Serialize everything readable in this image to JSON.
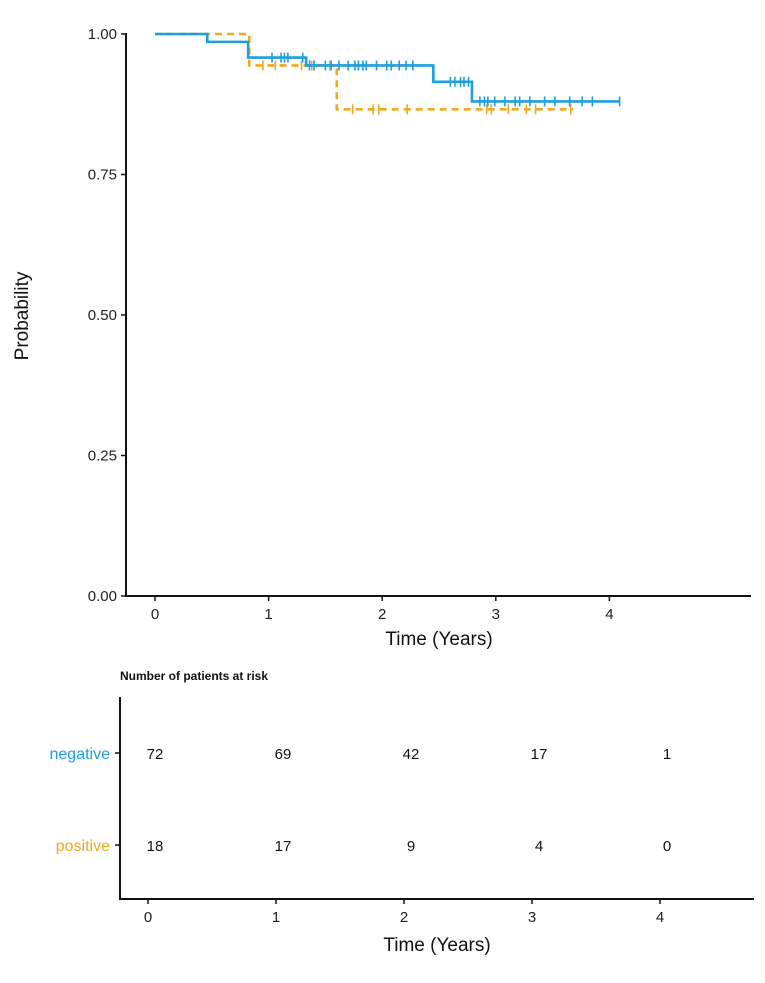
{
  "colors": {
    "negative": "#1c9fdc",
    "positive": "#f0a81c",
    "axis": "#111111"
  },
  "chart_data": [
    {
      "type": "line",
      "subtype": "kaplan-meier step",
      "title": "",
      "xlabel": "Time (Years)",
      "ylabel": "Probability",
      "xlim": [
        -0.25,
        5.25
      ],
      "ylim": [
        0,
        1
      ],
      "xticks": [
        "0",
        "1",
        "2",
        "3",
        "4"
      ],
      "yticks": [
        "0.00",
        "0.25",
        "0.50",
        "0.75",
        "1.00"
      ],
      "grid": false,
      "legend": "none (groups labelled in risk table)",
      "series": [
        {
          "name": "negative",
          "color": "#1c9fdc",
          "linestyle": "solid",
          "steps": [
            {
              "t": 0.0,
              "s": 1.0
            },
            {
              "t": 0.46,
              "s": 0.986
            },
            {
              "t": 0.82,
              "s": 0.958
            },
            {
              "t": 1.33,
              "s": 0.944
            },
            {
              "t": 2.45,
              "s": 0.915
            },
            {
              "t": 2.79,
              "s": 0.88
            }
          ],
          "end_t": 4.09,
          "censored_t": [
            1.03,
            1.11,
            1.14,
            1.17,
            1.3,
            1.36,
            1.4,
            1.5,
            1.55,
            1.62,
            1.7,
            1.76,
            1.79,
            1.83,
            1.86,
            1.95,
            2.04,
            2.08,
            2.15,
            2.21,
            2.27,
            2.6,
            2.64,
            2.69,
            2.72,
            2.76,
            2.86,
            2.9,
            2.93,
            2.99,
            3.08,
            3.17,
            3.21,
            3.3,
            3.43,
            3.52,
            3.65,
            3.76,
            3.85,
            4.09
          ]
        },
        {
          "name": "positive",
          "color": "#f0a81c",
          "linestyle": "dashed",
          "steps": [
            {
              "t": 0.0,
              "s": 1.0
            },
            {
              "t": 0.83,
              "s": 0.944
            },
            {
              "t": 1.6,
              "s": 0.866
            }
          ],
          "end_t": 3.68,
          "censored_t": [
            0.95,
            1.06,
            1.29,
            1.38,
            1.54,
            1.74,
            1.92,
            1.97,
            2.22,
            2.92,
            2.96,
            3.11,
            3.27,
            3.35,
            3.66
          ]
        }
      ]
    },
    {
      "type": "table",
      "title": "Number of patients at risk",
      "xlabel": "Time (Years)",
      "xticks": [
        "0",
        "1",
        "2",
        "3",
        "4"
      ],
      "rows": [
        {
          "group": "negative",
          "color": "#1c9fdc",
          "values": [
            72,
            69,
            42,
            17,
            1
          ]
        },
        {
          "group": "positive",
          "color": "#f0a81c",
          "values": [
            18,
            17,
            9,
            4,
            0
          ]
        }
      ]
    }
  ],
  "labels": {
    "ylabel": "Probability",
    "xlabel_main": "Time (Years)",
    "risk_title": "Number of patients at risk",
    "xlabel_risk": "Time (Years)"
  }
}
